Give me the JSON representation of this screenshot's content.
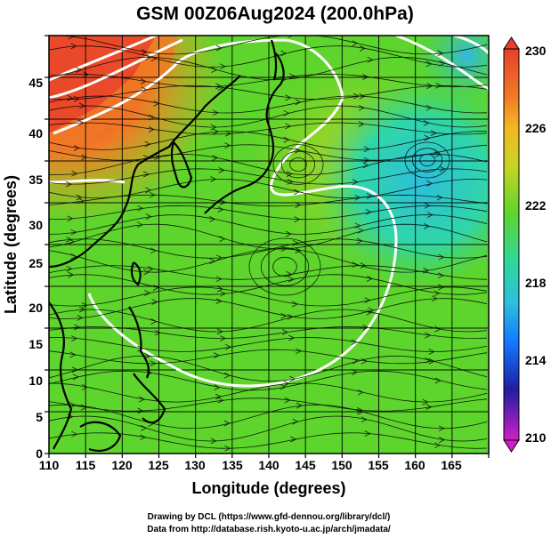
{
  "title": "GSM 00Z06Aug2024 (200.0hPa)",
  "xlabel": "Longitude (degrees)",
  "ylabel": "Latitude  (degrees)",
  "credits": [
    "Drawing by DCL (https://www.gfd-dennou.org/library/dcl/)",
    "Data from http://database.rish.kyoto-u.ac.jp/arch/jmadata/"
  ],
  "colorbar_labels": [
    "230",
    "226",
    "222",
    "218",
    "214",
    "210"
  ],
  "colors": {
    "hot": "#e8402a",
    "warm": "#f5a623",
    "mid": "#5dd52c",
    "cool": "#2ec8c8",
    "cold": "#1478ff",
    "coldest": "#1e1ea0",
    "min": "#d21ec8"
  },
  "chart_data": {
    "type": "heatmap",
    "title": "GSM 00Z06Aug2024 (200.0hPa)",
    "xlabel": "Longitude (degrees)",
    "ylabel": "Latitude  (degrees)",
    "xlim": [
      110,
      170
    ],
    "ylim": [
      0,
      50
    ],
    "xticks": [
      "110",
      "115",
      "120",
      "125",
      "130",
      "135",
      "140",
      "145",
      "150",
      "155",
      "160",
      "165"
    ],
    "yticks": [
      "0",
      "5",
      "10",
      "15",
      "20",
      "25",
      "30",
      "35",
      "40",
      "45"
    ],
    "colorbar": {
      "min": 210,
      "max": 230,
      "ticks": [
        230,
        226,
        222,
        218,
        214,
        210
      ]
    },
    "grid": true,
    "features": [
      "coastlines",
      "streamlines",
      "contours"
    ]
  }
}
